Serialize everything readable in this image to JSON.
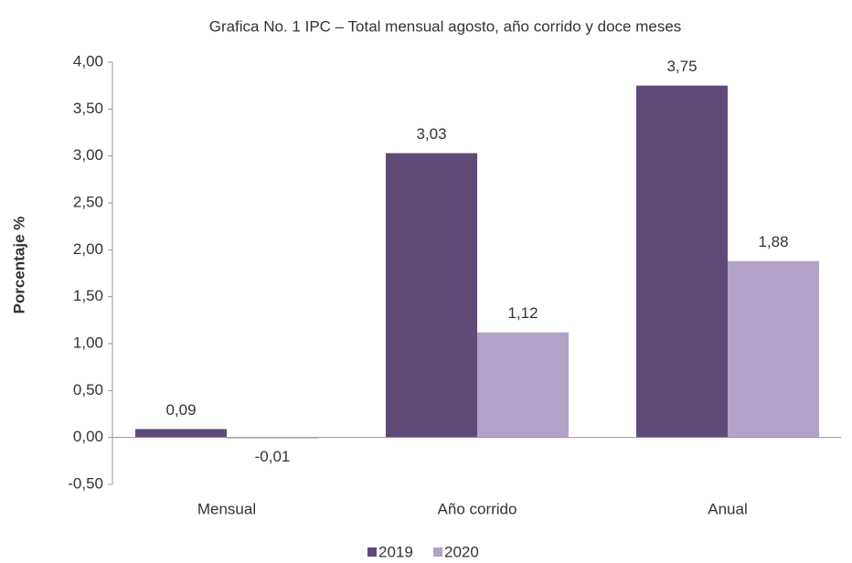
{
  "chart_data": {
    "type": "bar",
    "title": "Grafica No. 1 IPC – Total mensual agosto, año corrido y doce meses",
    "y_label": "Porcentaje %",
    "categories": [
      "Mensual",
      "Año corrido",
      "Anual"
    ],
    "series": [
      {
        "name": "2019",
        "color": "#5f4a7a",
        "values": [
          0.09,
          3.03,
          3.75
        ],
        "value_labels": [
          "0,09",
          "3,03",
          "3,75"
        ]
      },
      {
        "name": "2020",
        "color": "#b3a2c8",
        "values": [
          -0.01,
          1.12,
          1.88
        ],
        "value_labels": [
          "-0,01",
          "1,12",
          "1,88"
        ]
      }
    ],
    "ylim": [
      -0.5,
      4
    ],
    "yticks": [
      {
        "value": -0.5,
        "label": "-0,50"
      },
      {
        "value": 0,
        "label": "0,00"
      },
      {
        "value": 0.5,
        "label": "0,50"
      },
      {
        "value": 1,
        "label": "1,00"
      },
      {
        "value": 1.5,
        "label": "1,50"
      },
      {
        "value": 2,
        "label": "2,00"
      },
      {
        "value": 2.5,
        "label": "2,50"
      },
      {
        "value": 3,
        "label": "3,00"
      },
      {
        "value": 3.5,
        "label": "3,50"
      },
      {
        "value": 4,
        "label": "4,00"
      }
    ],
    "grid": false,
    "legend": "bottom"
  }
}
